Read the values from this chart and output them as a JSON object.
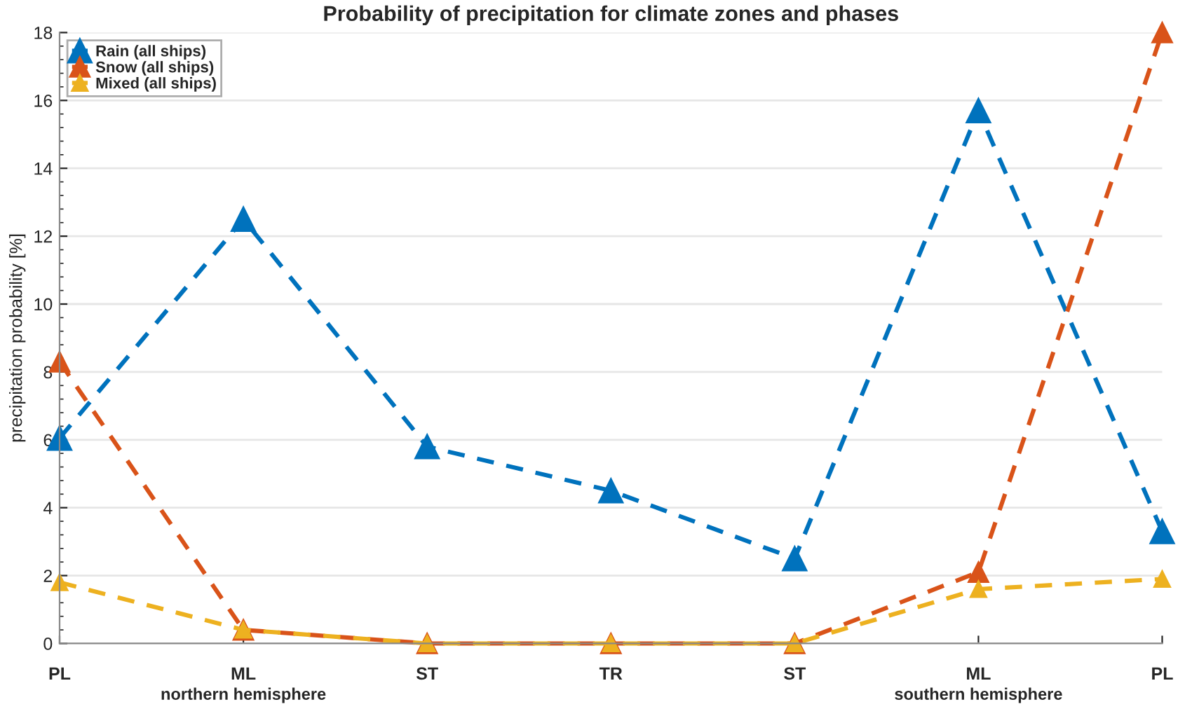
{
  "chart_data": {
    "type": "line",
    "title": "Probability of precipitation for climate zones and phases",
    "ylabel": "precipitation probability [%]",
    "categories": [
      "PL",
      "ML",
      "ST",
      "TR",
      "ST",
      "ML",
      "PL"
    ],
    "series": [
      {
        "name": "Rain (all ships)",
        "color": "#0072bd",
        "values": [
          6.05,
          12.5,
          5.8,
          4.5,
          2.5,
          15.7,
          3.3
        ]
      },
      {
        "name": "Snow (all ships)",
        "color": "#d95319",
        "values": [
          8.3,
          0.4,
          0,
          0,
          0,
          2.1,
          18
        ]
      },
      {
        "name": "Mixed (all ships)",
        "color": "#edb120",
        "values": [
          1.8,
          0.4,
          0,
          0,
          0,
          1.6,
          1.9
        ]
      }
    ],
    "annotations": [
      "northern hemisphere",
      "southern hemisphere"
    ],
    "ylim": [
      0,
      18
    ],
    "yticks": [
      0,
      2,
      4,
      6,
      8,
      10,
      12,
      14,
      16,
      18
    ],
    "grid": "y",
    "legend": "top left",
    "marker": "triangle",
    "line_style": "dashed"
  }
}
